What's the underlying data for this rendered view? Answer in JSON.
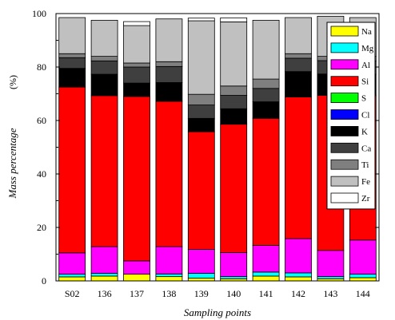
{
  "chart_data": {
    "type": "bar",
    "stacked": true,
    "xlabel": "Sampling points",
    "ylabel": "Mass percentage",
    "yunit": "(%)",
    "ylim": [
      0,
      100
    ],
    "yticks": [
      0,
      20,
      40,
      60,
      80,
      100
    ],
    "grid": false,
    "legend_position": "right",
    "categories": [
      "S02",
      "136",
      "137",
      "138",
      "139",
      "140",
      "141",
      "142",
      "143",
      "144"
    ],
    "series": [
      {
        "name": "Na",
        "color": "#ffff00",
        "values": [
          1.5,
          1.8,
          2.5,
          1.6,
          1.0,
          0.8,
          1.8,
          1.5,
          0.8,
          1.2
        ]
      },
      {
        "name": "Mg",
        "color": "#00ffff",
        "values": [
          1.0,
          1.0,
          0.0,
          1.0,
          1.8,
          0.8,
          1.5,
          1.5,
          0.8,
          1.3
        ]
      },
      {
        "name": "Al",
        "color": "#ff00ff",
        "values": [
          8.0,
          10.0,
          5.0,
          10.2,
          9.0,
          9.0,
          10.0,
          12.8,
          9.8,
          12.8
        ]
      },
      {
        "name": "Si",
        "color": "#ff0000",
        "values": [
          62.0,
          56.5,
          61.5,
          54.4,
          44.0,
          48.0,
          47.5,
          53.0,
          58.0,
          54.0
        ]
      },
      {
        "name": "S",
        "color": "#00ff00",
        "values": [
          0,
          0,
          0,
          0,
          0,
          0,
          0,
          0,
          0,
          0
        ]
      },
      {
        "name": "Cl",
        "color": "#0000ff",
        "values": [
          0,
          0,
          0,
          0,
          0,
          0,
          0,
          0,
          0,
          0
        ]
      },
      {
        "name": "K",
        "color": "#000000",
        "values": [
          7.0,
          8.0,
          5.0,
          7.0,
          5.0,
          5.8,
          6.2,
          9.5,
          8.0,
          8.0
        ]
      },
      {
        "name": "Ca",
        "color": "#3f3f3f",
        "values": [
          4.0,
          5.0,
          6.0,
          6.0,
          5.0,
          5.0,
          5.0,
          5.0,
          5.0,
          5.0
        ]
      },
      {
        "name": "Ti",
        "color": "#7f7f7f",
        "values": [
          1.5,
          1.7,
          1.5,
          1.8,
          4.0,
          3.5,
          3.5,
          1.7,
          1.6,
          1.7
        ]
      },
      {
        "name": "Fe",
        "color": "#c0c0c0",
        "values": [
          13.5,
          13.5,
          14.0,
          16.0,
          27.5,
          24.0,
          22.0,
          13.5,
          15.0,
          14.5
        ]
      },
      {
        "name": "Zr",
        "color": "#ffffff",
        "values": [
          0,
          0,
          1.5,
          0,
          1.0,
          1.5,
          0,
          0,
          0,
          0
        ]
      }
    ]
  }
}
